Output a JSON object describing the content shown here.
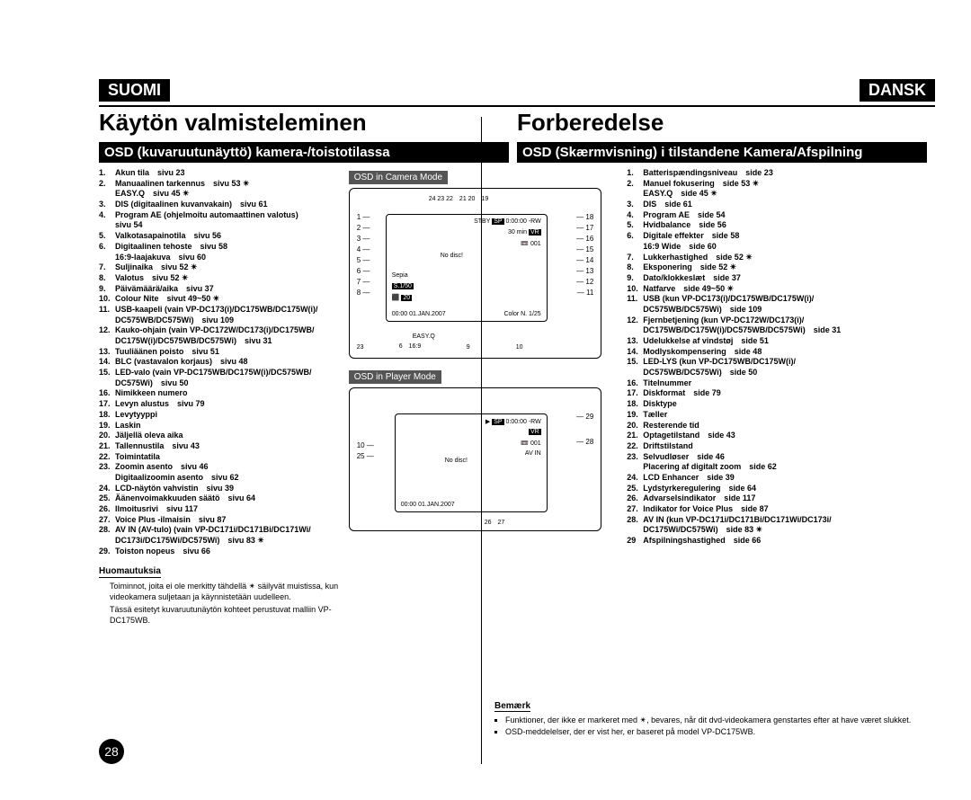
{
  "lang": {
    "left": "SUOMI",
    "right": "DANSK"
  },
  "titles": {
    "left": "Käytön valmisteleminen",
    "right": "Forberedelse"
  },
  "subtitles": {
    "left": "OSD (kuvaruutunäyttö) kamera-/toistotilassa",
    "right": "OSD (Skærmvisning) i tilstandene Kamera/Afspilning"
  },
  "diag_labels": {
    "camera": "OSD in Camera Mode",
    "player": "OSD in Player Mode"
  },
  "left_list": [
    {
      "n": "1.",
      "t": "Akun tila　sivu 23"
    },
    {
      "n": "2.",
      "t": "Manuaalinen tarkennus　sivu 53 ✴",
      "s": "EASY.Q　sivu 45 ✴"
    },
    {
      "n": "3.",
      "t": "DIS (digitaalinen kuvanvakain)　sivu 61"
    },
    {
      "n": "4.",
      "t": "Program AE (ohjelmoitu automaattinen valotus)",
      "s": "sivu 54"
    },
    {
      "n": "5.",
      "t": "Valkotasapainotila　sivu 56"
    },
    {
      "n": "6.",
      "t": "Digitaalinen tehoste　sivu 58",
      "s": "16:9-laajakuva　sivu 60"
    },
    {
      "n": "7.",
      "t": "Suljinaika　sivu 52 ✴"
    },
    {
      "n": "8.",
      "t": "Valotus　sivu 52 ✴"
    },
    {
      "n": "9.",
      "t": "Päivämäärä/aika　sivu 37"
    },
    {
      "n": "10.",
      "t": "Colour Nite　sivut 49~50 ✴"
    },
    {
      "n": "11.",
      "t": "USB-kaapeli (vain VP-DC173(i)/DC175WB/DC175W(i)/",
      "s": "DC575WB/DC575Wi)　sivu 109"
    },
    {
      "n": "12.",
      "t": "Kauko-ohjain (vain VP-DC172W/DC173(i)/DC175WB/",
      "s": "DC175W(i)/DC575WB/DC575Wi)　sivu 31"
    },
    {
      "n": "13.",
      "t": "Tuuliäänen poisto　sivu 51"
    },
    {
      "n": "14.",
      "t": "BLC (vastavalon korjaus)　sivu 48"
    },
    {
      "n": "15.",
      "t": "LED-valo (vain VP-DC175WB/DC175W(i)/DC575WB/",
      "s": "DC575Wi)　sivu 50"
    },
    {
      "n": "16.",
      "t": "Nimikkeen numero"
    },
    {
      "n": "17.",
      "t": "Levyn alustus　sivu 79"
    },
    {
      "n": "18.",
      "t": "Levytyyppi"
    },
    {
      "n": "19.",
      "t": "Laskin"
    },
    {
      "n": "20.",
      "t": "Jäljellä oleva aika"
    },
    {
      "n": "21.",
      "t": "Tallennustila　sivu 43"
    },
    {
      "n": "22.",
      "t": "Toimintatila"
    },
    {
      "n": "23.",
      "t": "Zoomin asento　sivu 46",
      "s": "Digitaalizoomin asento　sivu 62"
    },
    {
      "n": "24.",
      "t": "LCD-näytön vahvistin　sivu 39"
    },
    {
      "n": "25.",
      "t": "Äänenvoimakkuuden säätö　sivu 64"
    },
    {
      "n": "26.",
      "t": "Ilmoitusrivi　sivu 117"
    },
    {
      "n": "27.",
      "t": "Voice Plus -ilmaisin　sivu 87"
    },
    {
      "n": "28.",
      "t": "AV IN (AV-tulo) (vain VP-DC171i/DC171Bi/DC171Wi/",
      "s": "DC173i/DC175Wi/DC575Wi)　sivu 83 ✴"
    },
    {
      "n": "29.",
      "t": "Toiston nopeus　sivu 66"
    }
  ],
  "right_list": [
    {
      "n": "1.",
      "t": "Batterispændingsniveau　side 23"
    },
    {
      "n": "2.",
      "t": "Manuel fokusering　side 53 ✴",
      "s": "EASY.Q　side 45 ✴"
    },
    {
      "n": "3.",
      "t": "DIS　side 61"
    },
    {
      "n": "4.",
      "t": "Program AE　side 54"
    },
    {
      "n": "5.",
      "t": "Hvidbalance　side 56"
    },
    {
      "n": "6.",
      "t": "Digitale effekter　side 58",
      "s": "16:9 Wide　side 60"
    },
    {
      "n": "7.",
      "t": "Lukkerhastighed　side 52 ✴"
    },
    {
      "n": "8.",
      "t": "Eksponering　side 52 ✴"
    },
    {
      "n": "9.",
      "t": "Dato/klokkeslæt　side 37"
    },
    {
      "n": "10.",
      "t": "Natfarve　side 49~50 ✴"
    },
    {
      "n": "11.",
      "t": "USB (kun VP-DC173(i)/DC175WB/DC175W(i)/",
      "s": "DC575WB/DC575Wi)　side 109"
    },
    {
      "n": "12.",
      "t": "Fjernbetjening (kun VP-DC172W/DC173(i)/",
      "s": "DC175WB/DC175W(i)/DC575WB/DC575Wi)　side 31"
    },
    {
      "n": "13.",
      "t": "Udelukkelse af vindstøj　side 51"
    },
    {
      "n": "14.",
      "t": "Modlyskompensering　side 48"
    },
    {
      "n": "15.",
      "t": "LED-LYS (kun VP-DC175WB/DC175W(i)/",
      "s": "DC575WB/DC575Wi)　side 50"
    },
    {
      "n": "16.",
      "t": "Titelnummer"
    },
    {
      "n": "17.",
      "t": "Diskformat　side 79"
    },
    {
      "n": "18.",
      "t": "Disktype"
    },
    {
      "n": "19.",
      "t": "Tæller"
    },
    {
      "n": "20.",
      "t": "Resterende tid"
    },
    {
      "n": "21.",
      "t": "Optagetilstand　side 43"
    },
    {
      "n": "22.",
      "t": "Driftstilstand"
    },
    {
      "n": "23.",
      "t": "Selvudløser　side 46",
      "s": "Placering af digitalt zoom　side 62"
    },
    {
      "n": "24.",
      "t": "LCD Enhancer　side 39"
    },
    {
      "n": "25.",
      "t": "Lydstyrkeregulering　side 64"
    },
    {
      "n": "26.",
      "t": "Advarselsindikator　side 117"
    },
    {
      "n": "27.",
      "t": "Indikator for Voice Plus　side 87"
    },
    {
      "n": "28.",
      "t": "AV IN (kun VP-DC171i/DC171Bi/DC171Wi/DC173i/",
      "s": "DC175Wi/DC575Wi)　side 83 ✴"
    },
    {
      "n": "29",
      "t": "Afspilningshastighed　side 66"
    }
  ],
  "notes": {
    "left_hdr": "Huomautuksia",
    "left_items": [
      "Toiminnot, joita ei ole merkitty tähdellä ✴ säilyvät muistissa, kun videokamera suljetaan ja käynnistetään uudelleen.",
      "Tässä esitetyt kuvaruutunäytön kohteet perustuvat malliin VP-DC175WB."
    ],
    "right_hdr": "Bemærk",
    "right_items": [
      "Funktioner, der ikke er markeret med ✴, bevares, når dit dvd-videokamera genstartes efter at have været slukket.",
      "OSD-meddelelser, der er vist her, er baseret på model VP-DC175WB."
    ]
  },
  "diag1": {
    "top_nums": "24 23 22　21 20　19",
    "left_nums": [
      "1",
      "2",
      "3",
      "4",
      "5",
      "6",
      "7",
      "8"
    ],
    "right_nums": [
      "18",
      "17",
      "16",
      "15",
      "14",
      "13",
      "12",
      "11"
    ],
    "bottom_l": "23",
    "bottom_l2": "6",
    "bottom_l3": "16:9",
    "bottom_c": "9",
    "bottom_r": "10",
    "stby": "STBY",
    "sp": "SP",
    "time": "0:00:00",
    "rw": "-RW",
    "min": "30 min",
    "vr": "VR",
    "disc": "001",
    "sepia": "Sepia",
    "nodisc": "No disc!",
    "s150": "S.1/50",
    "exp": "20",
    "date": "00:00 01.JAN.2007",
    "color": "Color N. 1/25",
    "easy": "EASY.Q"
  },
  "diag2": {
    "left_nums": [
      "10",
      "25"
    ],
    "right_nums": [
      "29",
      "28"
    ],
    "bottom": [
      "26",
      "27"
    ],
    "sp": "SP",
    "time": "0:00:00",
    "rw": "-RW",
    "vr": "VR",
    "disc": "001",
    "avin": "AV IN",
    "nodisc": "No disc!",
    "date": "00:00 01.JAN.2007"
  },
  "page_num": "28"
}
